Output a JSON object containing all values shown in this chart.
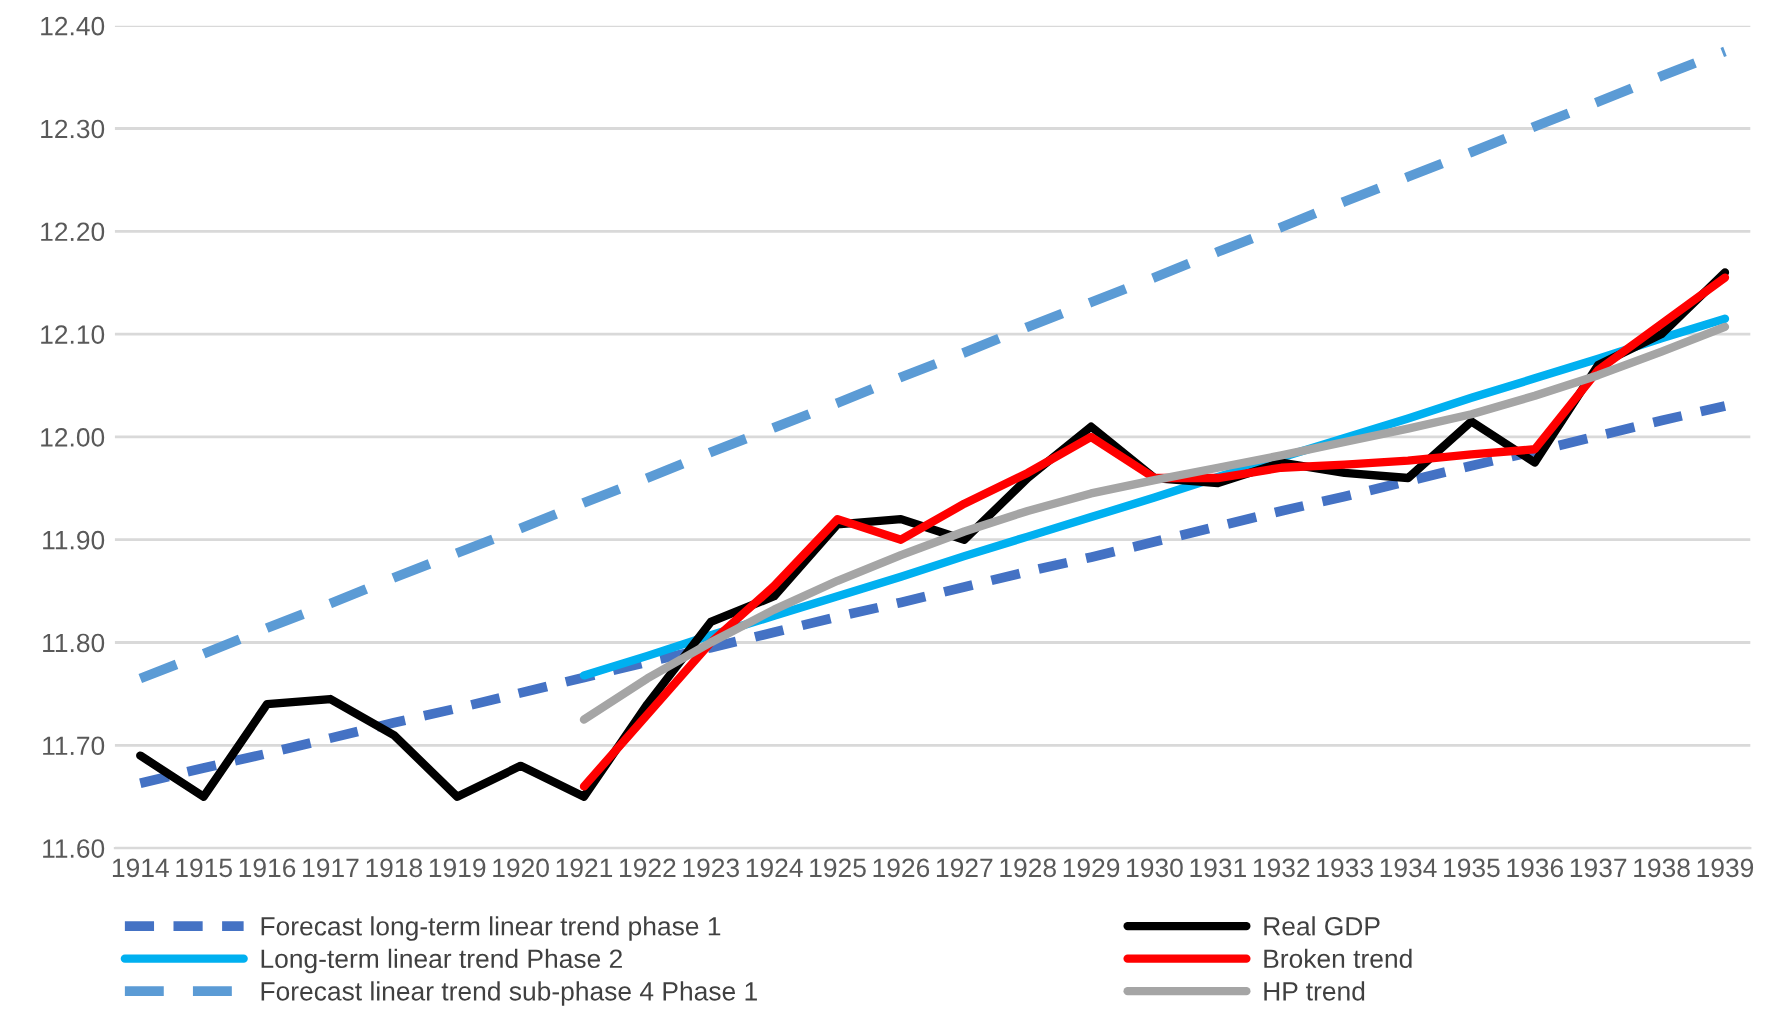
{
  "chart_data": {
    "type": "line",
    "categories": [
      "1914",
      "1915",
      "1916",
      "1917",
      "1918",
      "1919",
      "1920",
      "1921",
      "1922",
      "1923",
      "1924",
      "1925",
      "1926",
      "1927",
      "1928",
      "1929",
      "1930",
      "1931",
      "1932",
      "1933",
      "1934",
      "1935",
      "1936",
      "1937",
      "1938",
      "1939"
    ],
    "series": [
      {
        "name": "Forecast long-term linear trend phase 1",
        "color": "#4472c4",
        "line_style": "dashed",
        "values": [
          11.663,
          11.678,
          11.692,
          11.707,
          11.722,
          11.736,
          11.751,
          11.766,
          11.781,
          11.795,
          11.81,
          11.825,
          11.839,
          11.854,
          11.869,
          11.883,
          11.898,
          11.913,
          11.928,
          11.942,
          11.957,
          11.972,
          11.986,
          12.001,
          12.016,
          12.03
        ]
      },
      {
        "name": "Long-term linear trend Phase 2",
        "color": "#00b0f0",
        "line_style": "solid",
        "values": [
          null,
          null,
          null,
          null,
          null,
          null,
          null,
          11.768,
          11.787,
          11.807,
          11.826,
          11.845,
          11.864,
          11.884,
          11.903,
          11.922,
          11.941,
          11.961,
          11.98,
          11.999,
          12.018,
          12.038,
          12.057,
          12.076,
          12.096,
          12.115
        ]
      },
      {
        "name": "Forecast linear trend sub-phase 4 Phase 1",
        "color": "#5b9bd5",
        "line_style": "dashed",
        "values": [
          11.765,
          11.789,
          11.814,
          11.838,
          11.863,
          11.887,
          11.911,
          11.936,
          11.96,
          11.985,
          12.009,
          12.033,
          12.058,
          12.082,
          12.107,
          12.131,
          12.155,
          12.18,
          12.204,
          12.229,
          12.253,
          12.277,
          12.302,
          12.326,
          12.351,
          12.375
        ]
      },
      {
        "name": "Real GDP",
        "color": "#000000",
        "line_style": "solid",
        "values": [
          11.69,
          11.65,
          11.74,
          11.745,
          11.71,
          11.65,
          11.68,
          11.65,
          11.74,
          11.82,
          11.845,
          11.915,
          11.92,
          11.9,
          11.96,
          12.01,
          11.96,
          11.955,
          11.975,
          11.965,
          11.96,
          12.015,
          11.975,
          12.07,
          12.1,
          12.16
        ]
      },
      {
        "name": "Broken trend",
        "color": "#ff0000",
        "line_style": "solid",
        "values": [
          null,
          null,
          null,
          null,
          null,
          null,
          null,
          11.66,
          11.73,
          11.8,
          11.855,
          11.92,
          11.9,
          11.935,
          11.965,
          12.0,
          11.96,
          11.96,
          11.97,
          11.973,
          11.977,
          11.983,
          11.988,
          12.065,
          12.11,
          12.155
        ]
      },
      {
        "name": "HP trend",
        "color": "#a5a5a5",
        "line_style": "solid",
        "values": [
          null,
          null,
          null,
          null,
          null,
          null,
          null,
          11.725,
          11.765,
          11.8,
          11.832,
          11.86,
          11.885,
          11.908,
          11.928,
          11.945,
          11.958,
          11.97,
          11.982,
          11.995,
          12.008,
          12.022,
          12.04,
          12.06,
          12.083,
          12.107
        ]
      }
    ],
    "ylim": [
      11.6,
      12.4
    ],
    "yticks": [
      {
        "value": 11.6,
        "label": "11.60"
      },
      {
        "value": 11.7,
        "label": "11.70"
      },
      {
        "value": 11.8,
        "label": "11.80"
      },
      {
        "value": 11.9,
        "label": "11.90"
      },
      {
        "value": 12.0,
        "label": "12.00"
      },
      {
        "value": 12.1,
        "label": "12.10"
      },
      {
        "value": 12.2,
        "label": "12.20"
      },
      {
        "value": 12.3,
        "label": "12.30"
      },
      {
        "value": 12.4,
        "label": "12.40"
      }
    ],
    "grid": "y",
    "legend": "bottom",
    "marker": "none"
  }
}
